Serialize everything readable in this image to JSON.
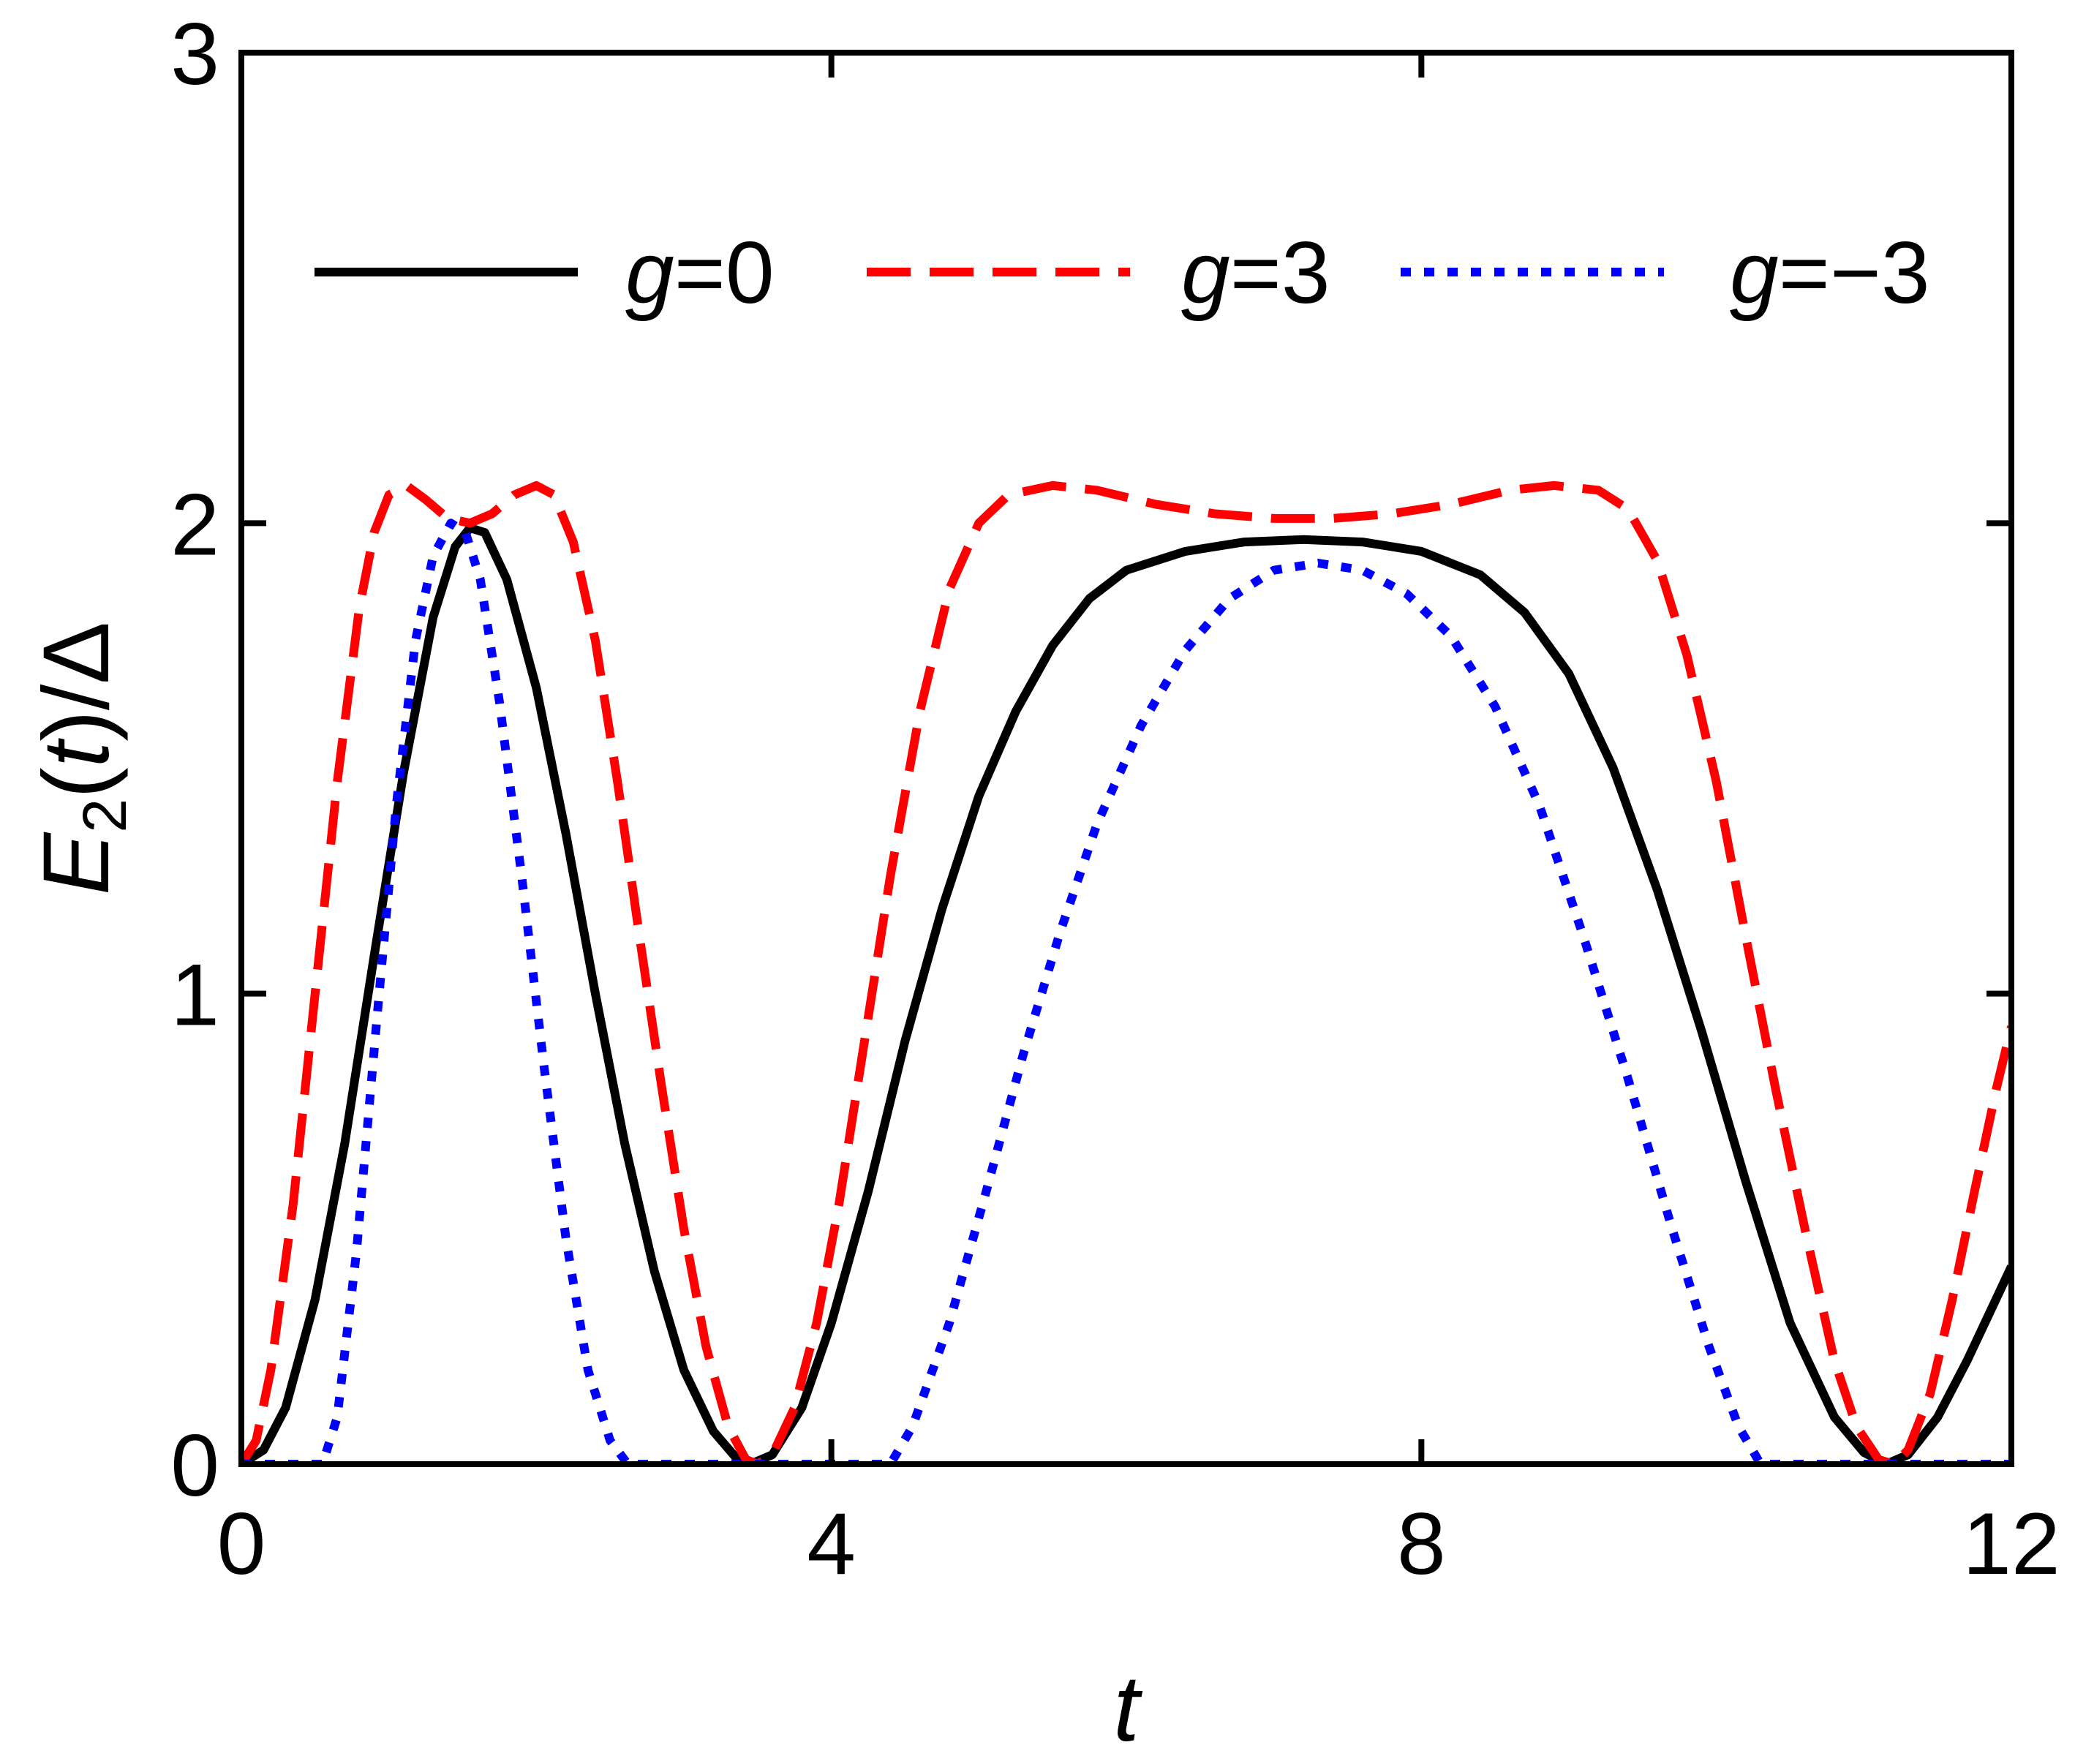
{
  "chart_data": {
    "type": "line",
    "xlabel": "t",
    "ylabel": {
      "E": "E",
      "sub": "2",
      "open": "(",
      "t": "t",
      "close": ")/Δ"
    },
    "xlim": [
      0,
      12
    ],
    "ylim": [
      0,
      3
    ],
    "xticks": [
      0,
      4,
      8,
      12
    ],
    "yticks": [
      0,
      1,
      2,
      3
    ],
    "xtick_labels": [
      "0",
      "4",
      "8",
      "12"
    ],
    "ytick_labels": [
      "0",
      "1",
      "2",
      "3"
    ],
    "grid": false,
    "legend_placement": "top, horizontal",
    "series": [
      {
        "name": "g=0",
        "legend": {
          "var": "g",
          "rest": "=0"
        },
        "color": "#000000",
        "dash": "solid",
        "points": [
          [
            0.0,
            0.0
          ],
          [
            0.15,
            0.03
          ],
          [
            0.3,
            0.12
          ],
          [
            0.5,
            0.35
          ],
          [
            0.7,
            0.68
          ],
          [
            0.9,
            1.08
          ],
          [
            1.1,
            1.47
          ],
          [
            1.3,
            1.8
          ],
          [
            1.45,
            1.95
          ],
          [
            1.55,
            1.99
          ],
          [
            1.65,
            1.98
          ],
          [
            1.8,
            1.88
          ],
          [
            2.0,
            1.65
          ],
          [
            2.2,
            1.34
          ],
          [
            2.4,
            1.0
          ],
          [
            2.6,
            0.68
          ],
          [
            2.8,
            0.41
          ],
          [
            3.0,
            0.2
          ],
          [
            3.2,
            0.07
          ],
          [
            3.35,
            0.015
          ],
          [
            3.45,
            0.0
          ],
          [
            3.6,
            0.02
          ],
          [
            3.8,
            0.12
          ],
          [
            4.0,
            0.3
          ],
          [
            4.25,
            0.58
          ],
          [
            4.5,
            0.9
          ],
          [
            4.75,
            1.18
          ],
          [
            5.0,
            1.42
          ],
          [
            5.25,
            1.6
          ],
          [
            5.5,
            1.74
          ],
          [
            5.75,
            1.84
          ],
          [
            6.0,
            1.9
          ],
          [
            6.4,
            1.94
          ],
          [
            6.8,
            1.96
          ],
          [
            7.2,
            1.965
          ],
          [
            7.6,
            1.96
          ],
          [
            8.0,
            1.94
          ],
          [
            8.4,
            1.89
          ],
          [
            8.7,
            1.81
          ],
          [
            9.0,
            1.68
          ],
          [
            9.3,
            1.48
          ],
          [
            9.6,
            1.22
          ],
          [
            9.9,
            0.92
          ],
          [
            10.2,
            0.6
          ],
          [
            10.5,
            0.3
          ],
          [
            10.8,
            0.1
          ],
          [
            11.0,
            0.025
          ],
          [
            11.15,
            0.0
          ],
          [
            11.3,
            0.02
          ],
          [
            11.5,
            0.1
          ],
          [
            11.7,
            0.22
          ],
          [
            11.85,
            0.32
          ],
          [
            12.0,
            0.42
          ]
        ]
      },
      {
        "name": "g=3",
        "legend": {
          "var": "g",
          "rest": "=3"
        },
        "color": "#ff0000",
        "dash": "dashed",
        "points": [
          [
            0.0,
            0.0
          ],
          [
            0.1,
            0.05
          ],
          [
            0.2,
            0.2
          ],
          [
            0.35,
            0.55
          ],
          [
            0.5,
            1.0
          ],
          [
            0.65,
            1.45
          ],
          [
            0.8,
            1.82
          ],
          [
            0.9,
            1.98
          ],
          [
            1.0,
            2.06
          ],
          [
            1.12,
            2.08
          ],
          [
            1.25,
            2.05
          ],
          [
            1.4,
            2.01
          ],
          [
            1.55,
            2.0
          ],
          [
            1.7,
            2.02
          ],
          [
            1.85,
            2.06
          ],
          [
            2.0,
            2.08
          ],
          [
            2.12,
            2.06
          ],
          [
            2.25,
            1.96
          ],
          [
            2.4,
            1.75
          ],
          [
            2.55,
            1.45
          ],
          [
            2.7,
            1.12
          ],
          [
            2.85,
            0.8
          ],
          [
            3.0,
            0.5
          ],
          [
            3.15,
            0.25
          ],
          [
            3.3,
            0.08
          ],
          [
            3.42,
            0.01
          ],
          [
            3.5,
            0.0
          ],
          [
            3.6,
            0.02
          ],
          [
            3.75,
            0.12
          ],
          [
            3.9,
            0.3
          ],
          [
            4.05,
            0.55
          ],
          [
            4.2,
            0.85
          ],
          [
            4.4,
            1.25
          ],
          [
            4.6,
            1.6
          ],
          [
            4.8,
            1.86
          ],
          [
            5.0,
            2.0
          ],
          [
            5.2,
            2.06
          ],
          [
            5.5,
            2.08
          ],
          [
            5.8,
            2.07
          ],
          [
            6.2,
            2.04
          ],
          [
            6.6,
            2.02
          ],
          [
            7.0,
            2.01
          ],
          [
            7.4,
            2.01
          ],
          [
            7.8,
            2.02
          ],
          [
            8.2,
            2.04
          ],
          [
            8.6,
            2.07
          ],
          [
            8.9,
            2.08
          ],
          [
            9.2,
            2.07
          ],
          [
            9.4,
            2.03
          ],
          [
            9.6,
            1.92
          ],
          [
            9.8,
            1.72
          ],
          [
            10.0,
            1.45
          ],
          [
            10.2,
            1.12
          ],
          [
            10.4,
            0.8
          ],
          [
            10.6,
            0.5
          ],
          [
            10.8,
            0.22
          ],
          [
            10.95,
            0.08
          ],
          [
            11.1,
            0.01
          ],
          [
            11.2,
            0.0
          ],
          [
            11.3,
            0.03
          ],
          [
            11.45,
            0.15
          ],
          [
            11.6,
            0.35
          ],
          [
            11.75,
            0.58
          ],
          [
            11.9,
            0.8
          ],
          [
            12.0,
            0.93
          ]
        ]
      },
      {
        "name": "g=−3",
        "legend": {
          "var": "g",
          "rest": "=−3"
        },
        "color": "#0000ff",
        "dash": "dotted",
        "points": [
          [
            0.0,
            0.0
          ],
          [
            0.55,
            0.0
          ],
          [
            0.65,
            0.1
          ],
          [
            0.78,
            0.45
          ],
          [
            0.92,
            0.95
          ],
          [
            1.05,
            1.4
          ],
          [
            1.18,
            1.75
          ],
          [
            1.3,
            1.93
          ],
          [
            1.42,
            2.0
          ],
          [
            1.52,
            1.98
          ],
          [
            1.62,
            1.88
          ],
          [
            1.75,
            1.62
          ],
          [
            1.9,
            1.25
          ],
          [
            2.05,
            0.85
          ],
          [
            2.2,
            0.48
          ],
          [
            2.35,
            0.2
          ],
          [
            2.5,
            0.05
          ],
          [
            2.62,
            0.0
          ],
          [
            4.4,
            0.0
          ],
          [
            4.55,
            0.08
          ],
          [
            4.8,
            0.3
          ],
          [
            5.05,
            0.58
          ],
          [
            5.3,
            0.87
          ],
          [
            5.55,
            1.13
          ],
          [
            5.8,
            1.36
          ],
          [
            6.1,
            1.57
          ],
          [
            6.4,
            1.73
          ],
          [
            6.7,
            1.84
          ],
          [
            7.0,
            1.9
          ],
          [
            7.3,
            1.915
          ],
          [
            7.6,
            1.9
          ],
          [
            7.9,
            1.85
          ],
          [
            8.2,
            1.76
          ],
          [
            8.5,
            1.61
          ],
          [
            8.8,
            1.4
          ],
          [
            9.1,
            1.12
          ],
          [
            9.4,
            0.82
          ],
          [
            9.7,
            0.5
          ],
          [
            9.95,
            0.25
          ],
          [
            10.15,
            0.08
          ],
          [
            10.3,
            0.0
          ],
          [
            11.15,
            0.0
          ],
          [
            12.0,
            0.0
          ]
        ]
      }
    ]
  }
}
